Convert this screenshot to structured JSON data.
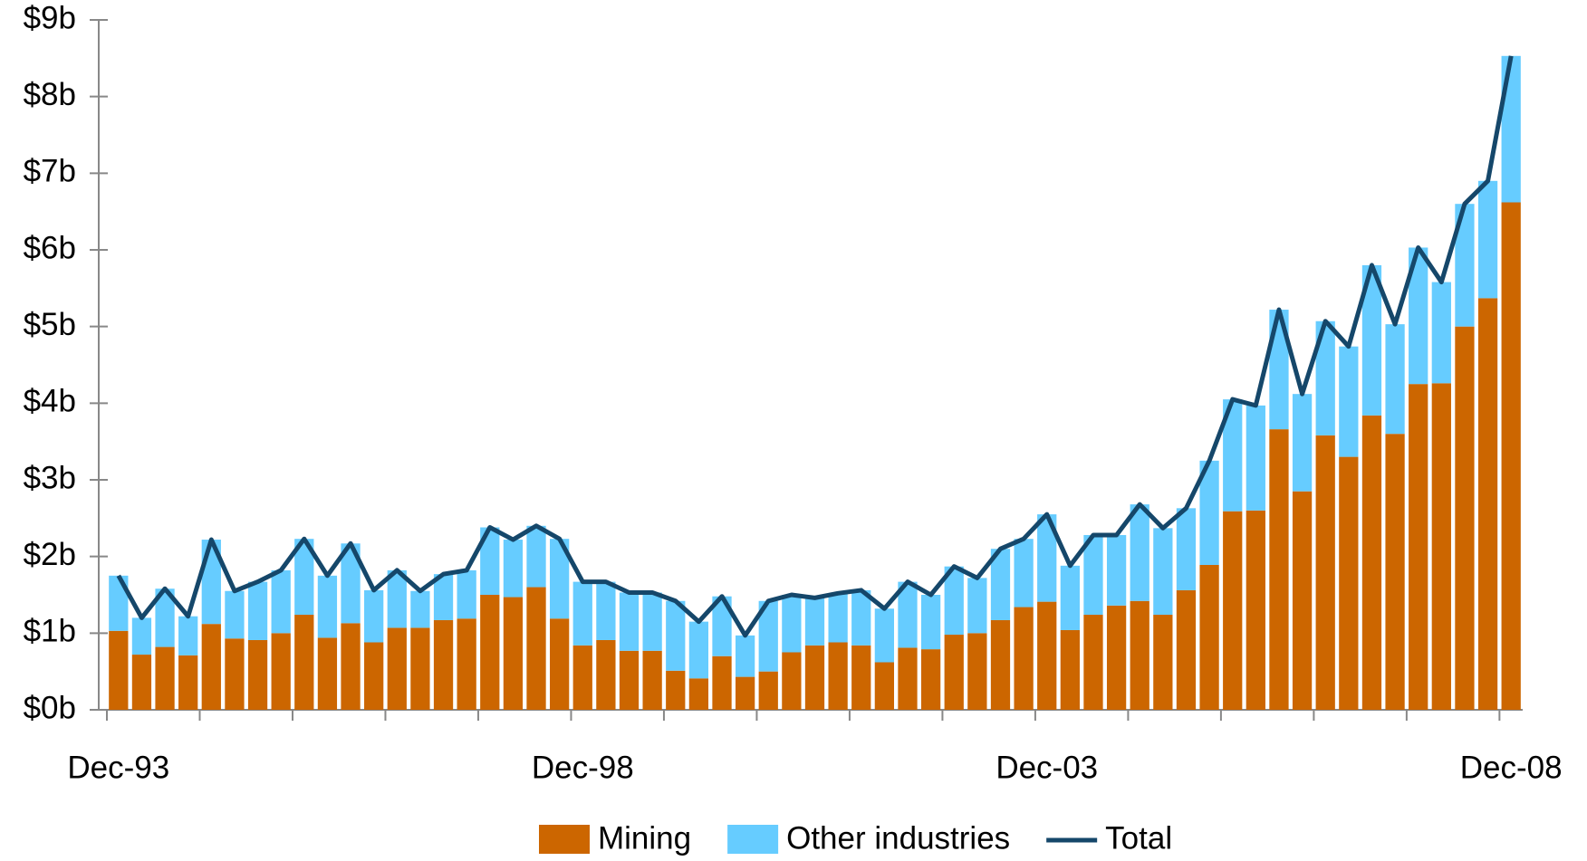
{
  "chart_data": {
    "type": "bar",
    "categories": [
      "Dec-93",
      null,
      null,
      null,
      null,
      null,
      null,
      null,
      null,
      null,
      null,
      null,
      null,
      null,
      null,
      null,
      null,
      null,
      null,
      null,
      "Dec-98",
      null,
      null,
      null,
      null,
      null,
      null,
      null,
      null,
      null,
      null,
      null,
      null,
      null,
      null,
      null,
      null,
      null,
      null,
      null,
      "Dec-03",
      null,
      null,
      null,
      null,
      null,
      null,
      null,
      null,
      null,
      null,
      null,
      null,
      null,
      null,
      null,
      null,
      null,
      null,
      null,
      "Dec-08"
    ],
    "series": [
      {
        "name": "Mining",
        "color": "#cc6600",
        "values": [
          1.03,
          0.72,
          0.82,
          0.71,
          1.12,
          0.93,
          0.91,
          1.0,
          1.24,
          0.94,
          1.13,
          0.88,
          1.07,
          1.07,
          1.17,
          1.19,
          1.5,
          1.47,
          1.6,
          1.19,
          0.84,
          0.91,
          0.77,
          0.77,
          0.51,
          0.41,
          0.7,
          0.43,
          0.5,
          0.75,
          0.84,
          0.88,
          0.84,
          0.62,
          0.81,
          0.79,
          0.98,
          1.0,
          1.17,
          1.34,
          1.41,
          1.04,
          1.24,
          1.36,
          1.42,
          1.24,
          1.56,
          1.89,
          2.59,
          2.6,
          3.66,
          2.85,
          3.58,
          3.3,
          3.84,
          3.6,
          4.25,
          4.26,
          5.0,
          5.37,
          6.62
        ]
      },
      {
        "name": "Other industries",
        "color": "#66ccff",
        "values": [
          0.72,
          0.48,
          0.76,
          0.51,
          1.1,
          0.62,
          0.76,
          0.82,
          0.99,
          0.81,
          1.04,
          0.68,
          0.75,
          0.48,
          0.6,
          0.63,
          0.88,
          0.75,
          0.8,
          1.04,
          0.83,
          0.76,
          0.76,
          0.76,
          0.91,
          0.74,
          0.78,
          0.54,
          0.92,
          0.75,
          0.62,
          0.64,
          0.72,
          0.7,
          0.86,
          0.71,
          0.89,
          0.72,
          0.93,
          0.89,
          1.14,
          0.84,
          1.04,
          0.92,
          1.26,
          1.13,
          1.07,
          1.36,
          1.46,
          1.37,
          1.56,
          1.27,
          1.49,
          1.44,
          1.96,
          1.43,
          1.78,
          1.32,
          1.6,
          1.53,
          1.91
        ]
      },
      {
        "name": "Total",
        "type": "line",
        "color": "#15476a",
        "values": [
          1.75,
          1.2,
          1.58,
          1.22,
          2.22,
          1.55,
          1.67,
          1.82,
          2.23,
          1.75,
          2.17,
          1.56,
          1.82,
          1.55,
          1.77,
          1.82,
          2.38,
          2.22,
          2.4,
          2.23,
          1.67,
          1.67,
          1.53,
          1.53,
          1.42,
          1.15,
          1.48,
          0.97,
          1.42,
          1.5,
          1.46,
          1.52,
          1.56,
          1.32,
          1.67,
          1.5,
          1.87,
          1.72,
          2.1,
          2.23,
          2.55,
          1.88,
          2.28,
          2.28,
          2.68,
          2.37,
          2.63,
          3.25,
          4.05,
          3.97,
          5.22,
          4.12,
          5.07,
          4.74,
          5.8,
          5.03,
          6.03,
          5.58,
          6.6,
          6.9,
          8.53
        ]
      }
    ],
    "ylim": [
      0,
      9
    ],
    "yticks": [
      {
        "value": 0,
        "label": "$0b"
      },
      {
        "value": 1,
        "label": "$1b"
      },
      {
        "value": 2,
        "label": "$2b"
      },
      {
        "value": 3,
        "label": "$3b"
      },
      {
        "value": 4,
        "label": "$4b"
      },
      {
        "value": 5,
        "label": "$5b"
      },
      {
        "value": 6,
        "label": "$6b"
      },
      {
        "value": 7,
        "label": "$7b"
      },
      {
        "value": 8,
        "label": "$8b"
      },
      {
        "value": 9,
        "label": "$9b"
      }
    ],
    "legend": "bottom"
  }
}
